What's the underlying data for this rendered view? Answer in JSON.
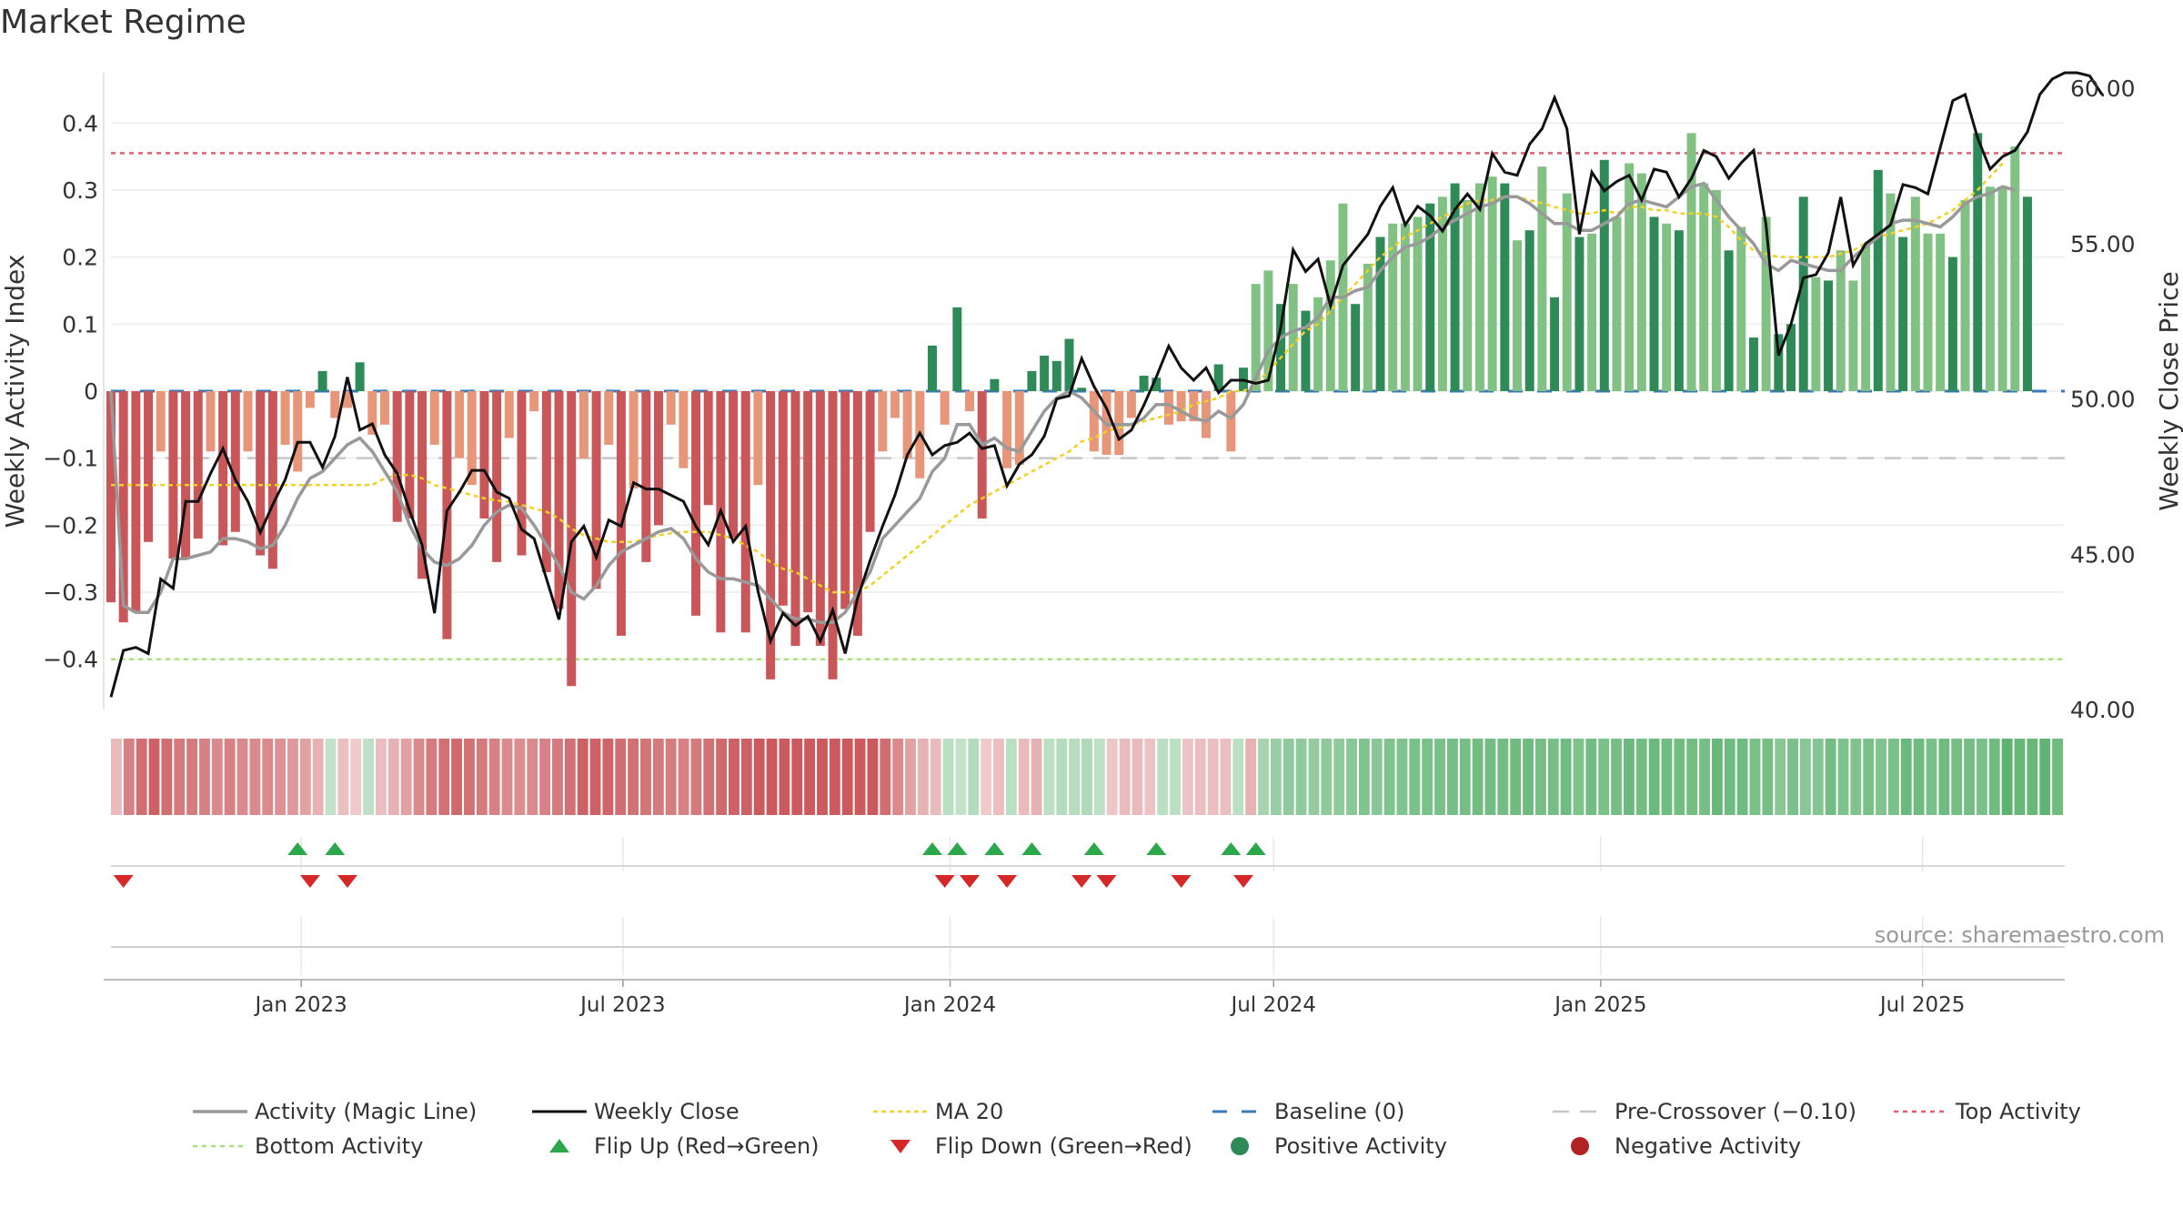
{
  "title": "Market Regime",
  "source": "source: sharemaestro.com",
  "colors": {
    "green_dark": "#2e8b57",
    "green_light": "#82c184",
    "red_dark": "#c9575a",
    "red_light": "#e8967a",
    "magic_line": "#999999",
    "close_line": "#111111",
    "ma_line": "#f2d024",
    "baseline": "#3a79b8",
    "precross": "#c6c6c6",
    "top_line": "#e06070",
    "bottom_line": "#a8e07a",
    "flip_up": "#2aa84a",
    "flip_down": "#d62828",
    "neg_dot": "#b22222"
  },
  "chart_data": {
    "type": "bar",
    "x_start": "2022-09-16",
    "x_end": "2025-09-19",
    "x_ticks": [
      {
        "date": "2023-01-01",
        "label": "Jan 2023"
      },
      {
        "date": "2023-07-01",
        "label": "Jul 2023"
      },
      {
        "date": "2024-01-01",
        "label": "Jan 2024"
      },
      {
        "date": "2024-07-01",
        "label": "Jul 2024"
      },
      {
        "date": "2025-01-01",
        "label": "Jan 2025"
      },
      {
        "date": "2025-07-01",
        "label": "Jul 2025"
      }
    ],
    "y_left": {
      "label": "Weekly Activity Index",
      "ylim": [
        -0.475,
        0.475
      ],
      "ticks": [
        {
          "v": 0.4,
          "label": "0.4"
        },
        {
          "v": 0.3,
          "label": "0.3"
        },
        {
          "v": 0.2,
          "label": "0.2"
        },
        {
          "v": 0.1,
          "label": "0.1"
        },
        {
          "v": 0,
          "label": "0"
        },
        {
          "v": -0.1,
          "label": "−0.1"
        },
        {
          "v": -0.2,
          "label": "−0.2"
        },
        {
          "v": -0.3,
          "label": "−0.3"
        },
        {
          "v": -0.4,
          "label": "−0.4"
        }
      ]
    },
    "y_right": {
      "label": "Weekly Close Price",
      "ylim": [
        40,
        60.5
      ],
      "ticks": [
        {
          "v": 60,
          "label": "60.00"
        },
        {
          "v": 55,
          "label": "55.00"
        },
        {
          "v": 50,
          "label": "50.00"
        },
        {
          "v": 45,
          "label": "45.00"
        },
        {
          "v": 40,
          "label": "40.00"
        }
      ]
    },
    "reference_lines": {
      "top": 0.355,
      "baseline": 0,
      "pre_crossover": -0.1,
      "bottom": -0.4
    },
    "activity": [
      -0.315,
      -0.345,
      -0.33,
      -0.225,
      -0.09,
      -0.25,
      -0.25,
      -0.22,
      -0.09,
      -0.23,
      -0.21,
      -0.09,
      -0.245,
      -0.265,
      -0.08,
      -0.12,
      -0.025,
      0.03,
      -0.04,
      -0.025,
      0.043,
      -0.065,
      -0.05,
      -0.195,
      -0.19,
      -0.28,
      -0.08,
      -0.37,
      -0.1,
      -0.14,
      -0.19,
      -0.255,
      -0.07,
      -0.245,
      -0.03,
      -0.27,
      -0.325,
      -0.44,
      -0.1,
      -0.295,
      -0.08,
      -0.365,
      -0.145,
      -0.255,
      -0.2,
      -0.05,
      -0.115,
      -0.335,
      -0.17,
      -0.36,
      -0.22,
      -0.36,
      -0.14,
      -0.43,
      -0.32,
      -0.38,
      -0.33,
      -0.38,
      -0.43,
      -0.325,
      -0.365,
      -0.21,
      -0.09,
      -0.04,
      -0.1,
      -0.13,
      0.068,
      -0.05,
      0.125,
      -0.03,
      -0.19,
      0.018,
      -0.115,
      -0.11,
      0.03,
      0.053,
      0.045,
      0.078,
      0.005,
      -0.09,
      -0.095,
      -0.095,
      -0.04,
      0.023,
      0.02,
      -0.05,
      -0.045,
      -0.045,
      -0.07,
      0.04,
      -0.09,
      0.035,
      0.16,
      0.18,
      0.13,
      0.16,
      0.12,
      0.14,
      0.195,
      0.28,
      0.13,
      0.19,
      0.23,
      0.25,
      0.25,
      0.26,
      0.28,
      0.29,
      0.31,
      0.285,
      0.31,
      0.32,
      0.31,
      0.225,
      0.24,
      0.335,
      0.14,
      0.295,
      0.23,
      0.235,
      0.345,
      0.26,
      0.34,
      0.325,
      0.26,
      0.25,
      0.24,
      0.385,
      0.31,
      0.3,
      0.21,
      0.245,
      0.08,
      0.26,
      0.085,
      0.1,
      0.29,
      0.17,
      0.165,
      0.21,
      0.165,
      0.22,
      0.33,
      0.295,
      0.23,
      0.29,
      0.235,
      0.235,
      0.2,
      0.285,
      0.385,
      0.305,
      0.305,
      0.365,
      0.29
    ],
    "magic_line": [
      0,
      -0.32,
      -0.33,
      -0.33,
      -0.3,
      -0.25,
      -0.25,
      -0.245,
      -0.24,
      -0.22,
      -0.22,
      -0.225,
      -0.235,
      -0.23,
      -0.2,
      -0.16,
      -0.13,
      -0.12,
      -0.1,
      -0.08,
      -0.07,
      -0.09,
      -0.12,
      -0.15,
      -0.2,
      -0.235,
      -0.255,
      -0.26,
      -0.25,
      -0.23,
      -0.2,
      -0.18,
      -0.17,
      -0.175,
      -0.2,
      -0.23,
      -0.26,
      -0.3,
      -0.31,
      -0.29,
      -0.26,
      -0.24,
      -0.23,
      -0.22,
      -0.21,
      -0.205,
      -0.22,
      -0.25,
      -0.27,
      -0.28,
      -0.28,
      -0.285,
      -0.29,
      -0.31,
      -0.33,
      -0.34,
      -0.34,
      -0.345,
      -0.345,
      -0.33,
      -0.3,
      -0.27,
      -0.22,
      -0.2,
      -0.18,
      -0.16,
      -0.12,
      -0.1,
      -0.05,
      -0.05,
      -0.08,
      -0.07,
      -0.085,
      -0.09,
      -0.06,
      -0.03,
      -0.01,
      0,
      -0.01,
      -0.03,
      -0.05,
      -0.05,
      -0.05,
      -0.04,
      -0.02,
      -0.02,
      -0.03,
      -0.04,
      -0.045,
      -0.03,
      -0.04,
      -0.02,
      0.02,
      0.06,
      0.08,
      0.09,
      0.095,
      0.11,
      0.14,
      0.14,
      0.15,
      0.155,
      0.18,
      0.2,
      0.215,
      0.22,
      0.23,
      0.245,
      0.255,
      0.265,
      0.275,
      0.28,
      0.29,
      0.29,
      0.28,
      0.265,
      0.25,
      0.25,
      0.24,
      0.24,
      0.25,
      0.26,
      0.28,
      0.285,
      0.28,
      0.275,
      0.29,
      0.305,
      0.31,
      0.285,
      0.26,
      0.24,
      0.22,
      0.19,
      0.18,
      0.195,
      0.19,
      0.185,
      0.18,
      0.18,
      0.2,
      0.215,
      0.23,
      0.25,
      0.255,
      0.255,
      0.25,
      0.245,
      0.26,
      0.28,
      0.29,
      0.295,
      0.305,
      0.3
    ],
    "ma20": [
      -0.14,
      -0.14,
      -0.14,
      -0.14,
      -0.14,
      -0.14,
      -0.14,
      -0.14,
      -0.14,
      -0.14,
      -0.14,
      -0.14,
      -0.14,
      -0.14,
      -0.14,
      -0.14,
      -0.14,
      -0.14,
      -0.14,
      -0.14,
      -0.14,
      -0.14,
      -0.13,
      -0.125,
      -0.125,
      -0.13,
      -0.14,
      -0.145,
      -0.15,
      -0.155,
      -0.16,
      -0.163,
      -0.165,
      -0.17,
      -0.175,
      -0.18,
      -0.19,
      -0.205,
      -0.215,
      -0.22,
      -0.225,
      -0.225,
      -0.225,
      -0.22,
      -0.215,
      -0.212,
      -0.21,
      -0.21,
      -0.21,
      -0.215,
      -0.22,
      -0.23,
      -0.24,
      -0.255,
      -0.265,
      -0.27,
      -0.28,
      -0.29,
      -0.3,
      -0.3,
      -0.3,
      -0.29,
      -0.275,
      -0.26,
      -0.245,
      -0.23,
      -0.215,
      -0.2,
      -0.185,
      -0.17,
      -0.16,
      -0.15,
      -0.14,
      -0.13,
      -0.12,
      -0.11,
      -0.1,
      -0.09,
      -0.075,
      -0.07,
      -0.06,
      -0.055,
      -0.05,
      -0.045,
      -0.04,
      -0.035,
      -0.03,
      -0.02,
      -0.015,
      -0.01,
      0,
      0,
      0.01,
      0.03,
      0.05,
      0.07,
      0.09,
      0.1,
      0.12,
      0.14,
      0.16,
      0.18,
      0.2,
      0.215,
      0.23,
      0.24,
      0.25,
      0.26,
      0.27,
      0.28,
      0.285,
      0.285,
      0.29,
      0.29,
      0.285,
      0.28,
      0.275,
      0.27,
      0.265,
      0.265,
      0.27,
      0.265,
      0.275,
      0.275,
      0.27,
      0.27,
      0.265,
      0.265,
      0.265,
      0.26,
      0.245,
      0.225,
      0.21,
      0.205,
      0.2,
      0.2,
      0.2,
      0.2,
      0.2,
      0.205,
      0.21,
      0.22,
      0.23,
      0.235,
      0.24,
      0.245,
      0.25,
      0.26,
      0.27,
      0.285,
      0.3,
      0.32,
      0.34
    ],
    "close": [
      40.4,
      41.9,
      42.0,
      41.8,
      44.2,
      43.9,
      46.7,
      46.7,
      47.6,
      48.4,
      47.4,
      46.7,
      45.7,
      46.6,
      47.4,
      48.6,
      48.6,
      47.8,
      48.8,
      50.7,
      49.0,
      49.2,
      48.2,
      47.6,
      46.4,
      45.3,
      43.1,
      46.4,
      47.0,
      47.7,
      47.7,
      47.0,
      46.8,
      45.8,
      45.5,
      44.2,
      42.9,
      45.4,
      45.9,
      44.9,
      46.1,
      45.9,
      47.3,
      47.1,
      47.1,
      46.9,
      46.7,
      45.9,
      45.3,
      46.4,
      45.4,
      45.9,
      43.8,
      42.2,
      43.1,
      42.7,
      43.0,
      42.2,
      43.2,
      41.8,
      43.6,
      44.8,
      45.9,
      46.9,
      48.2,
      48.9,
      48.2,
      48.5,
      48.6,
      48.9,
      48.4,
      48.5,
      47.2,
      47.9,
      48.2,
      48.8,
      50.0,
      50.1,
      51.3,
      50.4,
      49.7,
      48.7,
      49.0,
      49.8,
      50.7,
      51.7,
      51.0,
      50.6,
      51.0,
      50.2,
      50.6,
      50.6,
      50.5,
      50.6,
      52.3,
      54.8,
      54.1,
      54.5,
      53.0,
      54.3,
      54.8,
      55.3,
      56.2,
      56.8,
      55.6,
      56.2,
      55.9,
      55.4,
      56.1,
      56.6,
      56.1,
      57.9,
      57.3,
      57.2,
      58.2,
      58.7,
      59.7,
      58.7,
      55.3,
      57.3,
      56.7,
      57.0,
      57.2,
      56.4,
      57.4,
      57.3,
      56.5,
      57.1,
      58.0,
      57.8,
      57.1,
      57.6,
      58.0,
      55.6,
      51.4,
      52.4,
      53.9,
      54.0,
      54.7,
      56.5,
      54.3,
      55.0,
      55.3,
      55.6,
      56.9,
      56.8,
      56.6,
      58.1,
      59.6,
      59.8,
      58.4,
      57.4,
      57.8,
      58.0,
      58.6,
      59.8,
      60.3,
      60.5,
      60.5,
      60.4,
      59.8
    ],
    "regime_strip": [
      -0.06,
      -0.2,
      -0.25,
      -0.28,
      -0.25,
      -0.22,
      -0.22,
      -0.2,
      -0.18,
      -0.2,
      -0.18,
      -0.18,
      -0.18,
      -0.16,
      -0.14,
      -0.12,
      -0.08,
      0.02,
      -0.05,
      -0.02,
      0.03,
      -0.05,
      -0.08,
      -0.12,
      -0.18,
      -0.22,
      -0.24,
      -0.26,
      -0.24,
      -0.22,
      -0.2,
      -0.18,
      -0.17,
      -0.18,
      -0.2,
      -0.22,
      -0.24,
      -0.28,
      -0.28,
      -0.27,
      -0.25,
      -0.24,
      -0.23,
      -0.22,
      -0.21,
      -0.2,
      -0.22,
      -0.24,
      -0.26,
      -0.28,
      -0.28,
      -0.3,
      -0.3,
      -0.32,
      -0.33,
      -0.34,
      -0.34,
      -0.35,
      -0.35,
      -0.34,
      -0.3,
      -0.25,
      -0.18,
      -0.12,
      -0.08,
      -0.06,
      0.04,
      0.02,
      0.06,
      -0.02,
      -0.05,
      0.04,
      -0.06,
      -0.08,
      0.04,
      0.06,
      0.05,
      0.07,
      0.03,
      -0.03,
      -0.06,
      -0.06,
      -0.04,
      0.04,
      0.04,
      -0.04,
      -0.05,
      -0.05,
      -0.05,
      0.04,
      -0.08,
      0.1,
      0.14,
      0.16,
      0.16,
      0.15,
      0.16,
      0.16,
      0.18,
      0.2,
      0.18,
      0.2,
      0.2,
      0.22,
      0.22,
      0.22,
      0.23,
      0.23,
      0.24,
      0.24,
      0.24,
      0.25,
      0.25,
      0.23,
      0.23,
      0.25,
      0.21,
      0.24,
      0.22,
      0.23,
      0.26,
      0.24,
      0.26,
      0.25,
      0.24,
      0.24,
      0.23,
      0.27,
      0.25,
      0.25,
      0.22,
      0.23,
      0.18,
      0.22,
      0.18,
      0.19,
      0.24,
      0.21,
      0.2,
      0.22,
      0.2,
      0.22,
      0.26,
      0.25,
      0.22,
      0.25,
      0.23,
      0.23,
      0.22,
      0.25,
      0.3,
      0.27,
      0.27,
      0.29,
      0.25
    ],
    "flip_up_weeks": [
      15,
      18,
      66,
      68,
      71,
      74,
      79,
      84,
      90,
      92
    ],
    "flip_down_weeks": [
      1,
      16,
      19,
      67,
      69,
      72,
      78,
      80,
      86,
      91
    ]
  },
  "legend": [
    [
      {
        "key": "magic",
        "label": "Activity (Magic Line)"
      },
      {
        "key": "close",
        "label": "Weekly Close"
      },
      {
        "key": "ma",
        "label": "MA 20"
      },
      {
        "key": "baseline",
        "label": "Baseline (0)"
      },
      {
        "key": "precross",
        "label": "Pre-Crossover (−0.10)"
      },
      {
        "key": "top",
        "label": "Top Activity"
      }
    ],
    [
      {
        "key": "bottom",
        "label": "Bottom Activity"
      },
      {
        "key": "flipup",
        "label": "Flip Up (Red→Green)"
      },
      {
        "key": "flipdown",
        "label": "Flip Down (Green→Red)"
      },
      {
        "key": "posdot",
        "label": "Positive Activity"
      },
      {
        "key": "negdot",
        "label": "Negative Activity"
      }
    ]
  ]
}
